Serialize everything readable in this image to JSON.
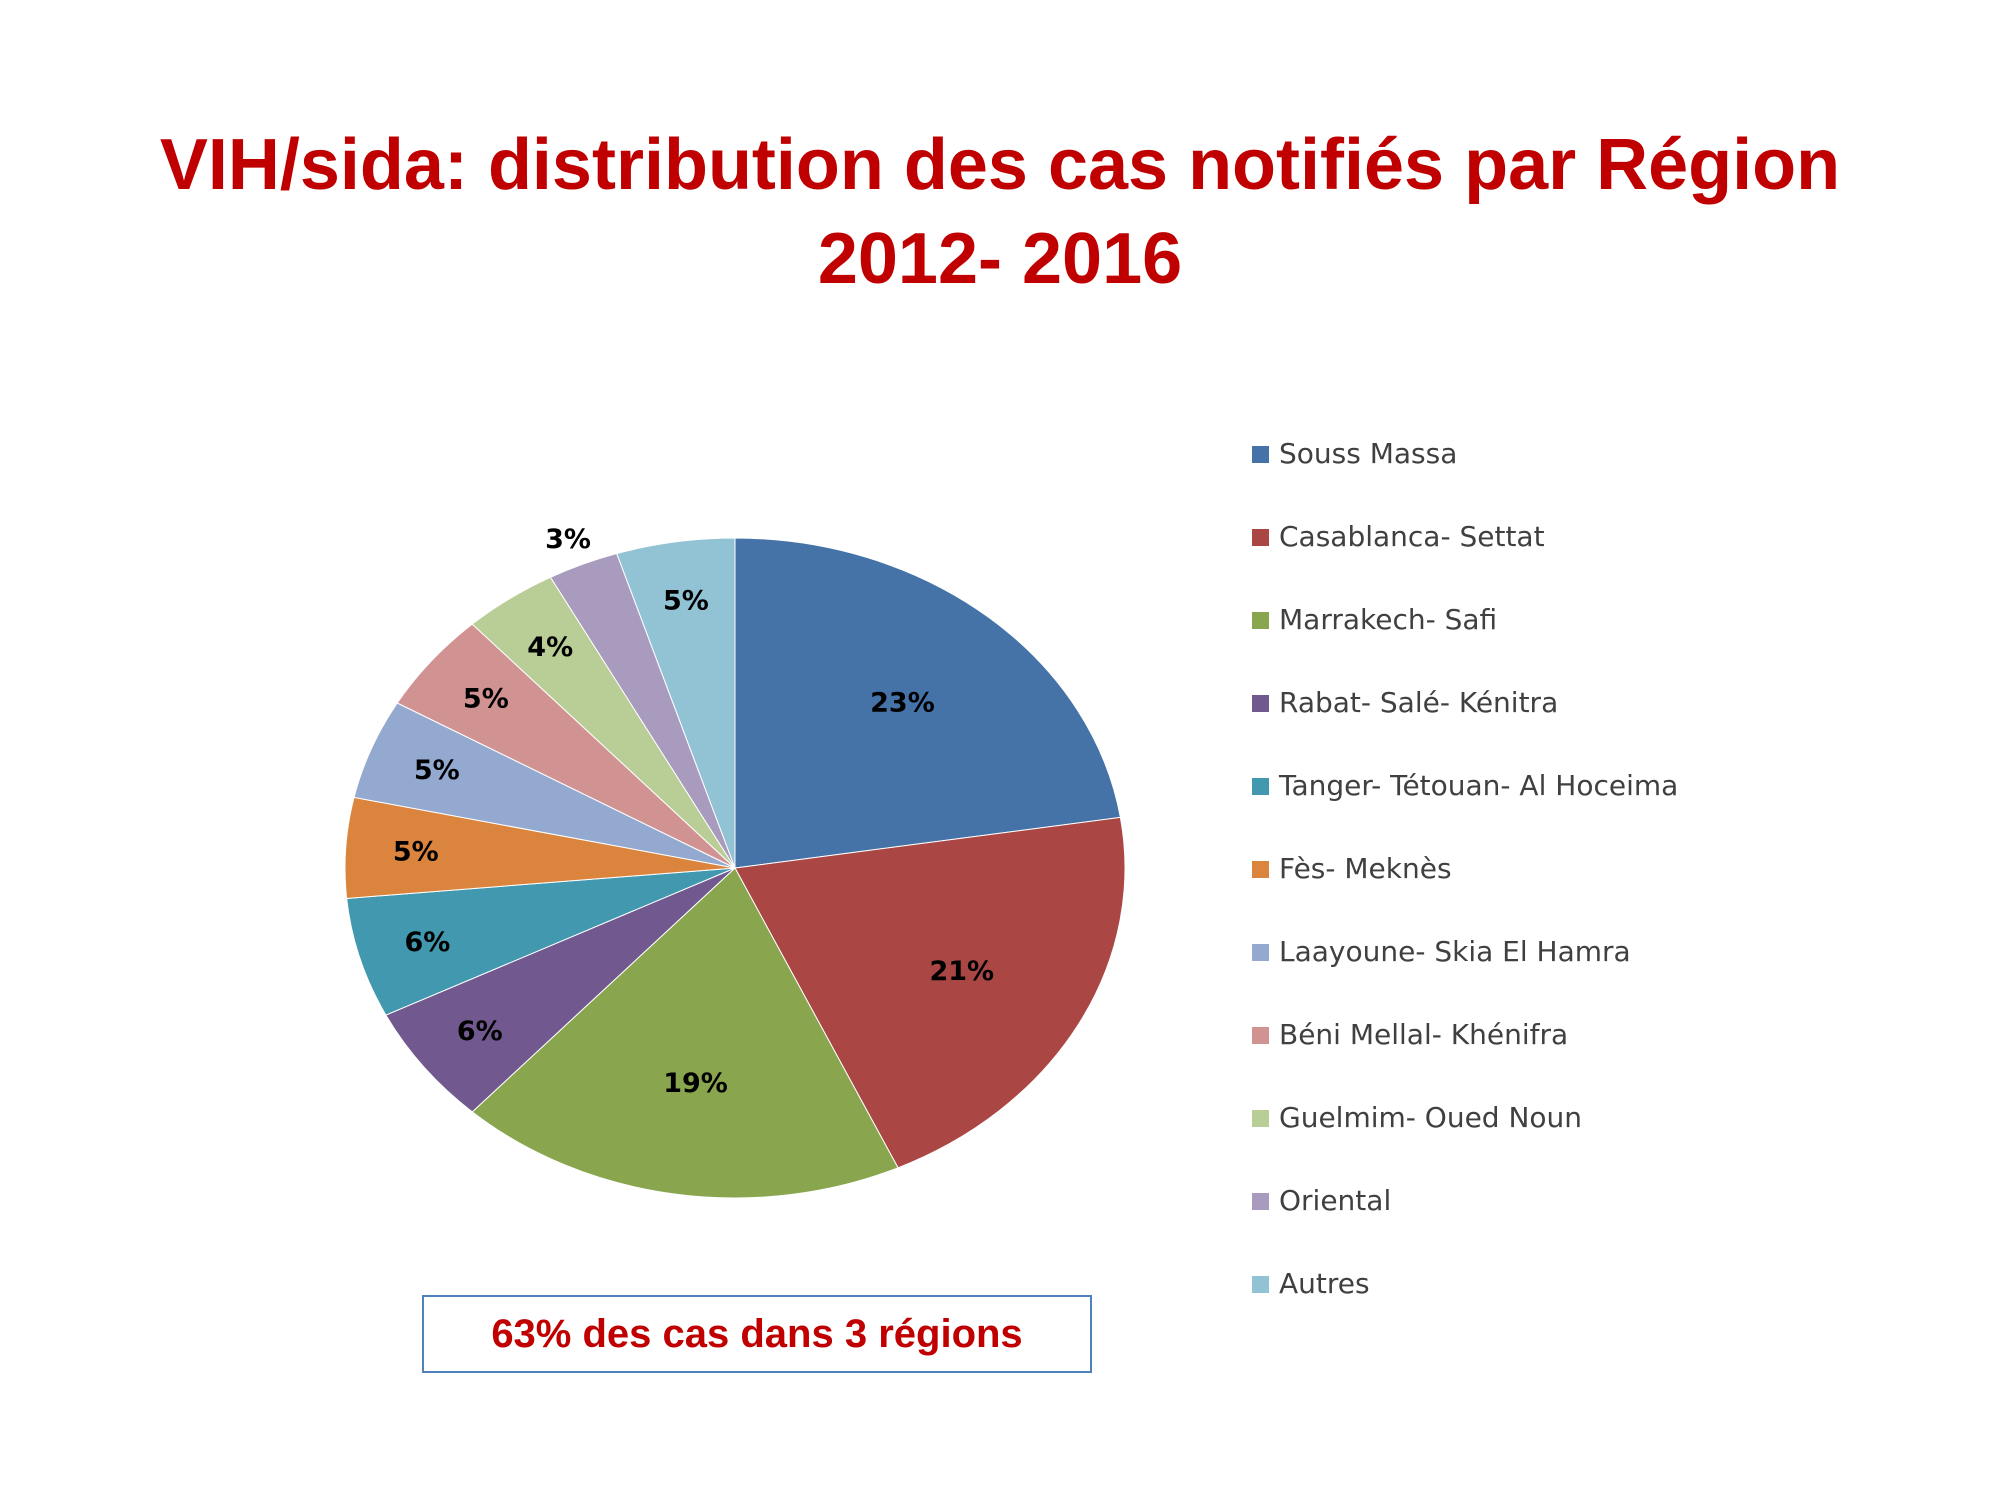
{
  "title": {
    "line1": "VIH/sida: distribution des cas notifiés par Région",
    "line2": "2012- 2016"
  },
  "callout": "63% des cas dans 3 régions",
  "chart_data": {
    "type": "pie",
    "title": "",
    "legend_position": "right",
    "categories": [
      "Souss Massa",
      "Casablanca- Settat",
      "Marrakech- Safi",
      "Rabat- Salé- Kénitra",
      "Tanger- Tétouan- Al Hoceima",
      "Fès- Meknès",
      "Laayoune- Skia El Hamra",
      "Béni Mellal- Khénifra",
      "Guelmim- Oued Noun",
      "Oriental",
      "Autres"
    ],
    "values": [
      23,
      21,
      19,
      6,
      6,
      5,
      5,
      5,
      4,
      3,
      5
    ],
    "labels": [
      "23%",
      "21%",
      "19%",
      "6%",
      "6%",
      "5%",
      "5%",
      "5%",
      "4%",
      "3%",
      "5%"
    ],
    "colors": [
      "#4572a7",
      "#aa4643",
      "#89a54e",
      "#71588f",
      "#4198af",
      "#db843d",
      "#93a9cf",
      "#d19392",
      "#b9cd96",
      "#a99bbd",
      "#92c3d4"
    ]
  }
}
